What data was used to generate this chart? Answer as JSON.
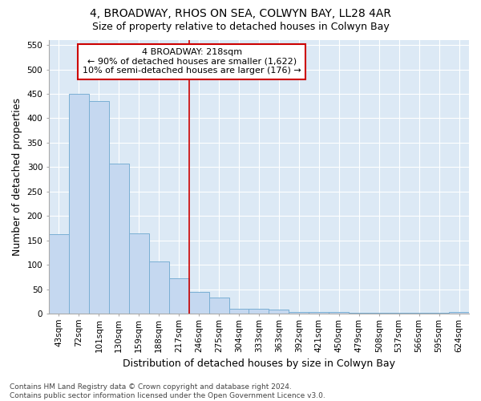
{
  "title1": "4, BROADWAY, RHOS ON SEA, COLWYN BAY, LL28 4AR",
  "title2": "Size of property relative to detached houses in Colwyn Bay",
  "xlabel": "Distribution of detached houses by size in Colwyn Bay",
  "ylabel": "Number of detached properties",
  "categories": [
    "43sqm",
    "72sqm",
    "101sqm",
    "130sqm",
    "159sqm",
    "188sqm",
    "217sqm",
    "246sqm",
    "275sqm",
    "304sqm",
    "333sqm",
    "363sqm",
    "392sqm",
    "421sqm",
    "450sqm",
    "479sqm",
    "508sqm",
    "537sqm",
    "566sqm",
    "595sqm",
    "624sqm"
  ],
  "values": [
    162,
    450,
    435,
    307,
    165,
    107,
    73,
    44,
    33,
    10,
    10,
    8,
    4,
    4,
    4,
    2,
    2,
    1,
    1,
    1,
    4
  ],
  "bar_color": "#c5d8f0",
  "bar_edge_color": "#7aafd4",
  "vline_index": 6,
  "vline_color": "#cc0000",
  "annotation_text": "4 BROADWAY: 218sqm\n← 90% of detached houses are smaller (1,622)\n10% of semi-detached houses are larger (176) →",
  "annotation_box_color": "white",
  "annotation_box_edge": "#cc0000",
  "ylim": [
    0,
    560
  ],
  "yticks": [
    0,
    50,
    100,
    150,
    200,
    250,
    300,
    350,
    400,
    450,
    500,
    550
  ],
  "footnote": "Contains HM Land Registry data © Crown copyright and database right 2024.\nContains public sector information licensed under the Open Government Licence v3.0.",
  "fig_bg_color": "#ffffff",
  "plot_bg_color": "#dce9f5",
  "grid_color": "#ffffff",
  "title_fontsize": 10,
  "subtitle_fontsize": 9,
  "tick_fontsize": 7.5,
  "label_fontsize": 9,
  "annotation_fontsize": 8,
  "footnote_fontsize": 6.5
}
